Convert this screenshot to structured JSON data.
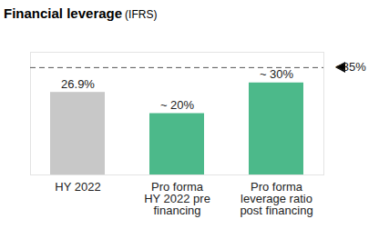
{
  "chart_data": {
    "type": "bar",
    "title": "Financial leverage",
    "subtitle": "(IFRS)",
    "categories": [
      "HY 2022",
      "Pro forma\nHY 2022 pre\nfinancing",
      "Pro forma\nleverage ratio\npost financing"
    ],
    "values": [
      26.9,
      20,
      30
    ],
    "value_labels": [
      "26.9%",
      "~ 20%",
      "~ 30%"
    ],
    "colors": [
      "#c8c8c8",
      "#4cb98a",
      "#4cb98a"
    ],
    "data_labels": true,
    "tick_labels": "x",
    "grid": false,
    "ylim": [
      0,
      40
    ],
    "reference_lines": [
      {
        "value": 35,
        "label": "<35%",
        "line_style": "dashed"
      }
    ]
  }
}
